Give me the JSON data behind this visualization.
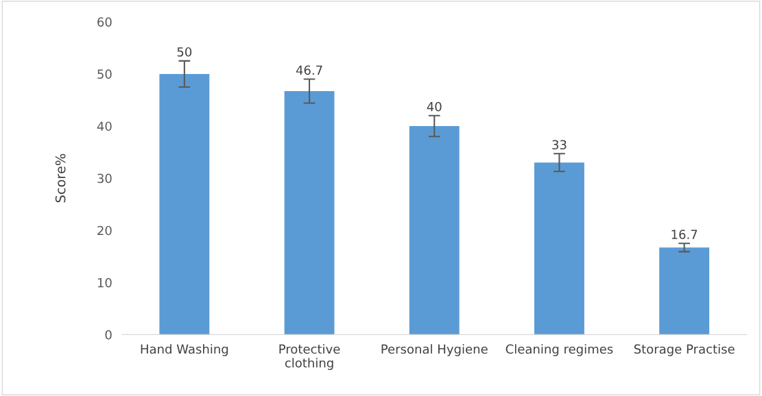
{
  "chart_data": {
    "type": "bar",
    "ylabel": "Score%",
    "categories": [
      "Hand Washing",
      "Protective\nclothing",
      "Personal Hygiene",
      "Cleaning regimes",
      "Storage Practise"
    ],
    "values": [
      50,
      46.7,
      40,
      33,
      16.7
    ],
    "errors": [
      2.5,
      2.3,
      2.0,
      1.7,
      0.8
    ],
    "color": "#5b9bd5",
    "data_labels": true,
    "grid": false,
    "ylim": [
      0,
      60
    ],
    "yticks": [
      0,
      10,
      20,
      30,
      40,
      50,
      60
    ]
  }
}
